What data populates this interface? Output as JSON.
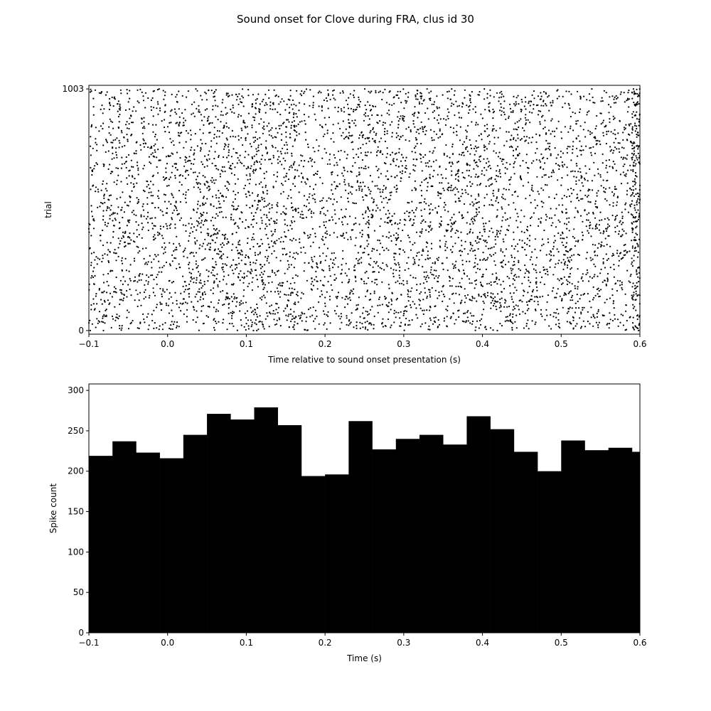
{
  "title": "Sound onset for Clove during FRA,  clus id 30",
  "chart_data": [
    {
      "type": "scatter",
      "subtype": "raster",
      "xlabel": "Time relative to sound onset presentation (s)",
      "ylabel": "trial",
      "xlim": [
        -0.1,
        0.6
      ],
      "ylim": [
        -15,
        1018
      ],
      "xticks": [
        -0.1,
        0.0,
        0.1,
        0.2,
        0.3,
        0.4,
        0.5,
        0.6
      ],
      "xtick_labels": [
        "−0.1",
        "0.0",
        "0.1",
        "0.2",
        "0.3",
        "0.4",
        "0.5",
        "0.6"
      ],
      "yticks": [
        0,
        1003
      ],
      "ytick_labels": [
        "0",
        "1003"
      ],
      "n_trials": 1004,
      "marker_color": "#000000",
      "grid": false
    },
    {
      "type": "bar",
      "subtype": "histogram",
      "xlabel": "Time (s)",
      "ylabel": "Spike count",
      "xlim": [
        -0.1,
        0.6
      ],
      "ylim": [
        0,
        308
      ],
      "bin_edges": [
        -0.1,
        -0.07,
        -0.04,
        -0.01,
        0.02,
        0.05,
        0.08,
        0.11,
        0.14,
        0.17,
        0.2,
        0.23,
        0.26,
        0.29,
        0.32,
        0.35,
        0.38,
        0.41,
        0.44,
        0.47,
        0.5,
        0.53,
        0.56,
        0.59,
        0.6
      ],
      "values": [
        219,
        237,
        223,
        216,
        245,
        271,
        264,
        279,
        257,
        194,
        196,
        262,
        227,
        240,
        245,
        233,
        268,
        252,
        224,
        200,
        238,
        226,
        229,
        224
      ],
      "xticks": [
        -0.1,
        0.0,
        0.1,
        0.2,
        0.3,
        0.4,
        0.5,
        0.6
      ],
      "xtick_labels": [
        "−0.1",
        "0.0",
        "0.1",
        "0.2",
        "0.3",
        "0.4",
        "0.5",
        "0.6"
      ],
      "yticks": [
        0,
        50,
        100,
        150,
        200,
        250,
        300
      ],
      "ytick_labels": [
        "0",
        "50",
        "100",
        "150",
        "200",
        "250",
        "300"
      ],
      "bar_color": "#000000",
      "grid": false
    }
  ]
}
